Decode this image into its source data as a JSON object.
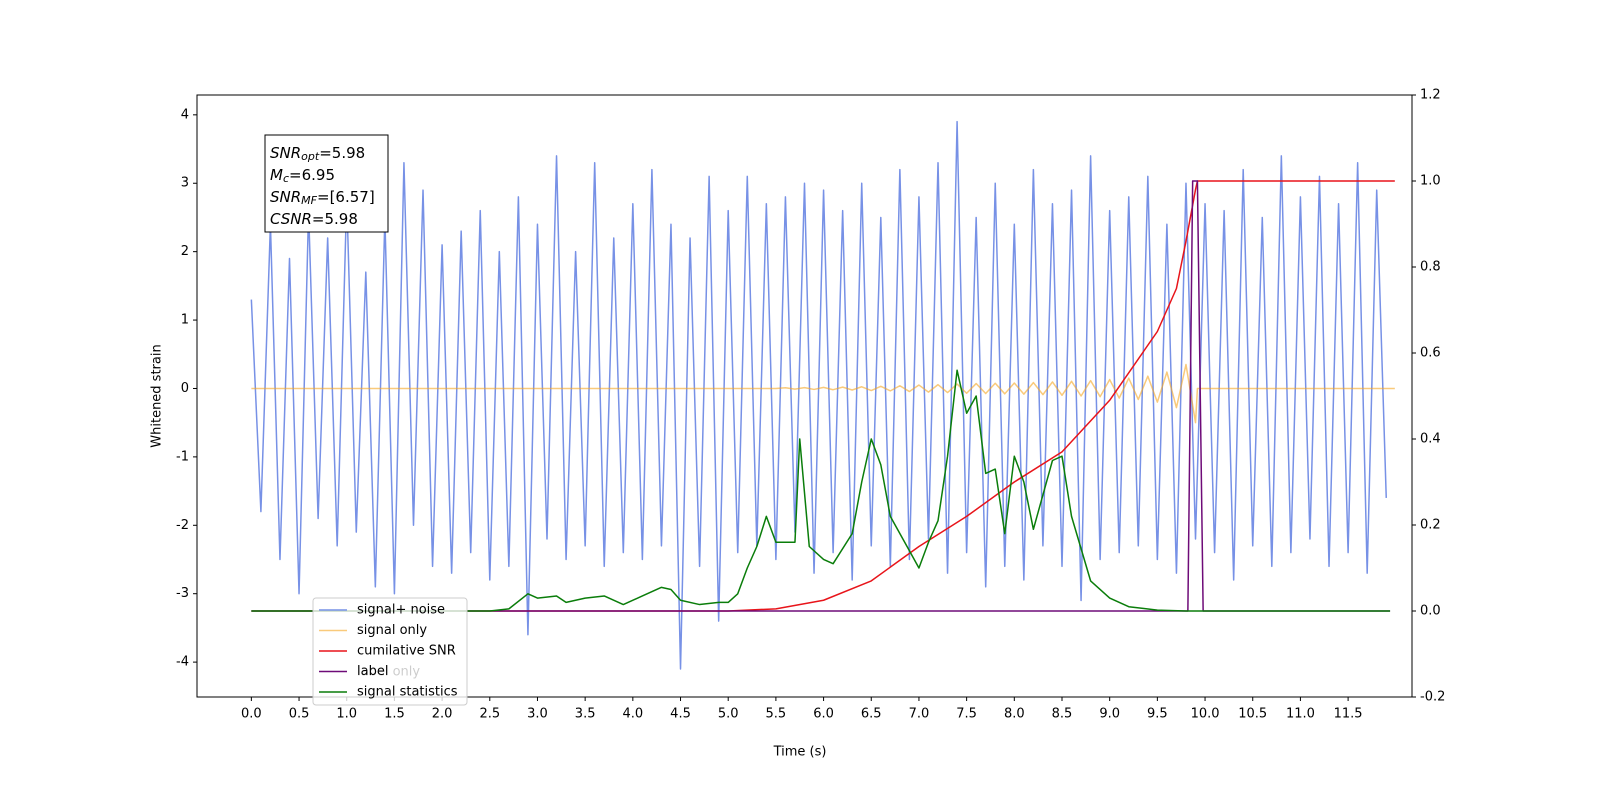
{
  "chart_data": {
    "type": "line",
    "xlabel": "Time (s)",
    "ylabel": "Whitened strain",
    "xlim": [
      -0.57,
      12.17
    ],
    "ylim": [
      -4.51,
      4.29
    ],
    "y2lim": [
      -0.2,
      1.2
    ],
    "xticks": [
      {
        "value": 0,
        "label": "0.0"
      },
      0.5,
      {
        "value": 1,
        "label": "1.0"
      },
      1.5,
      {
        "value": 2,
        "label": "2.0"
      },
      2.5,
      {
        "value": 3,
        "label": "3.0"
      },
      3.5,
      {
        "value": 4,
        "label": "4.0"
      },
      4.5,
      {
        "value": 5,
        "label": "5.0"
      },
      5.5,
      {
        "value": 6,
        "label": "6.0"
      },
      6.5,
      {
        "value": 7,
        "label": "7.0"
      },
      7.5,
      {
        "value": 8,
        "label": "8.0"
      },
      8.5,
      {
        "value": 9,
        "label": "9.0"
      },
      9.5,
      {
        "value": 10,
        "label": "10.0"
      },
      10.5,
      {
        "value": 11,
        "label": "11.0"
      },
      11.5
    ],
    "yticks": [
      -4,
      -3,
      -2,
      -1,
      0,
      1,
      2,
      3,
      4
    ],
    "y2ticks": [
      -0.2,
      {
        "value": 0,
        "label": "0.0"
      },
      0.2,
      0.4,
      0.6,
      0.8,
      {
        "value": 1,
        "label": "1.0"
      },
      1.2
    ],
    "annotation": [
      {
        "main": "SNR",
        "sub": "opt",
        "rest": "=5.98"
      },
      {
        "main": "M",
        "sub": "c",
        "rest": "=6.95"
      },
      {
        "main": "SNR",
        "sub": "MF",
        "rest": "=[6.57]"
      },
      {
        "main": "CSNR",
        "sub": null,
        "rest": "=5.98"
      }
    ],
    "legend_ghost": [
      "label only"
    ],
    "series": [
      {
        "name": "signal+ noise",
        "color": "#7791e6",
        "axis": "y",
        "x": [
          0,
          0.1,
          0.2,
          0.3,
          0.4,
          0.5,
          0.6,
          0.7,
          0.8,
          0.9,
          1,
          1.1,
          1.2,
          1.3,
          1.4,
          1.5,
          1.6,
          1.7,
          1.8,
          1.9,
          2,
          2.1,
          2.2,
          2.3,
          2.4,
          2.5,
          2.6,
          2.7,
          2.8,
          2.9,
          3,
          3.1,
          3.2,
          3.3,
          3.4,
          3.5,
          3.6,
          3.7,
          3.8,
          3.9,
          4,
          4.1,
          4.2,
          4.3,
          4.4,
          4.5,
          4.6,
          4.7,
          4.8,
          4.9,
          5,
          5.1,
          5.2,
          5.3,
          5.4,
          5.5,
          5.6,
          5.7,
          5.8,
          5.9,
          6,
          6.1,
          6.2,
          6.3,
          6.4,
          6.5,
          6.6,
          6.7,
          6.8,
          6.9,
          7,
          7.1,
          7.2,
          7.3,
          7.4,
          7.5,
          7.6,
          7.7,
          7.8,
          7.9,
          8,
          8.1,
          8.2,
          8.3,
          8.4,
          8.5,
          8.6,
          8.7,
          8.8,
          8.9,
          9,
          9.1,
          9.2,
          9.3,
          9.4,
          9.5,
          9.6,
          9.7,
          9.8,
          9.9,
          10,
          10.1,
          10.2,
          10.3,
          10.4,
          10.5,
          10.6,
          10.7,
          10.8,
          10.9,
          11,
          11.1,
          11.2,
          11.3,
          11.4,
          11.5,
          11.6,
          11.7,
          11.8,
          11.9
        ],
        "values": [
          1.3,
          -1.8,
          2.4,
          -2.5,
          1.9,
          -3.0,
          2.6,
          -1.9,
          2.2,
          -2.3,
          2.8,
          -2.1,
          1.7,
          -2.9,
          2.5,
          -3.0,
          3.3,
          -2.0,
          2.9,
          -2.6,
          2.1,
          -2.7,
          2.3,
          -2.4,
          2.6,
          -2.8,
          2.0,
          -2.6,
          2.8,
          -3.6,
          2.4,
          -2.2,
          3.4,
          -2.5,
          2.0,
          -2.3,
          3.3,
          -2.6,
          2.2,
          -2.4,
          2.7,
          -2.5,
          3.2,
          -2.3,
          2.4,
          -4.1,
          2.2,
          -2.6,
          3.1,
          -3.4,
          2.6,
          -2.4,
          3.1,
          -2.3,
          2.7,
          -2.5,
          2.8,
          -2.1,
          3.0,
          -2.7,
          2.9,
          -2.4,
          2.6,
          -2.8,
          3.0,
          -2.3,
          2.5,
          -2.6,
          3.2,
          -2.5,
          2.8,
          -2.2,
          3.3,
          -2.7,
          3.9,
          -2.4,
          2.5,
          -2.9,
          3.0,
          -2.6,
          2.4,
          -2.8,
          3.2,
          -2.3,
          2.7,
          -2.6,
          2.9,
          -3.1,
          3.4,
          -2.5,
          2.6,
          -2.4,
          2.8,
          -2.3,
          3.1,
          -2.5,
          2.4,
          -2.7,
          3.0,
          -2.2,
          2.7,
          -2.4,
          2.6,
          -2.8,
          3.2,
          -2.3,
          2.5,
          -2.6,
          3.4,
          -2.4,
          2.8,
          -2.2,
          3.1,
          -2.6,
          2.7,
          -2.4,
          3.3,
          -2.7,
          2.9,
          -1.6
        ]
      },
      {
        "name": "signal only",
        "color": "#f5a623",
        "axis": "y",
        "x": [
          0,
          5.5,
          5.6,
          5.7,
          5.8,
          5.9,
          6,
          6.1,
          6.2,
          6.3,
          6.4,
          6.5,
          6.6,
          6.7,
          6.8,
          6.9,
          7,
          7.1,
          7.2,
          7.3,
          7.4,
          7.5,
          7.6,
          7.7,
          7.8,
          7.9,
          8,
          8.1,
          8.2,
          8.3,
          8.4,
          8.5,
          8.6,
          8.7,
          8.8,
          8.9,
          9,
          9.1,
          9.2,
          9.3,
          9.4,
          9.5,
          9.6,
          9.7,
          9.8,
          9.9,
          9.92,
          11.99
        ],
        "values": [
          0,
          0,
          0.01,
          -0.01,
          0.012,
          -0.014,
          0.016,
          -0.018,
          0.02,
          -0.022,
          0.025,
          -0.03,
          0.032,
          -0.035,
          0.04,
          -0.045,
          0.05,
          -0.053,
          0.056,
          -0.06,
          0.065,
          -0.07,
          0.072,
          -0.074,
          0.076,
          -0.078,
          0.08,
          -0.083,
          0.086,
          -0.09,
          0.095,
          -0.1,
          0.105,
          -0.11,
          0.115,
          -0.12,
          0.13,
          -0.14,
          0.15,
          -0.16,
          0.18,
          -0.2,
          0.24,
          -0.28,
          0.35,
          -0.5,
          0,
          0
        ]
      },
      {
        "name": "cumilative SNR",
        "color": "#e8141a",
        "axis": "y2",
        "x": [
          0,
          5,
          5.5,
          6,
          6.5,
          7,
          7.5,
          8,
          8.5,
          9,
          9.5,
          9.7,
          9.8,
          9.9,
          9.92,
          11.99
        ],
        "values": [
          0,
          0,
          0.005,
          0.025,
          0.07,
          0.15,
          0.22,
          0.3,
          0.37,
          0.49,
          0.65,
          0.75,
          0.86,
          0.98,
          1,
          1
        ]
      },
      {
        "name": "label",
        "color": "#6e0b78",
        "axis": "y2",
        "x": [
          0,
          9.82,
          9.87,
          9.92,
          9.98,
          11.94
        ],
        "values": [
          0,
          0,
          1,
          1,
          0,
          0
        ]
      },
      {
        "name": "signal statistics",
        "color": "#0a7d0a",
        "axis": "y2",
        "x": [
          0,
          2.5,
          2.7,
          2.9,
          3,
          3.2,
          3.3,
          3.5,
          3.7,
          3.9,
          4.1,
          4.3,
          4.4,
          4.5,
          4.7,
          4.9,
          5,
          5.1,
          5.2,
          5.3,
          5.4,
          5.5,
          5.7,
          5.75,
          5.85,
          6,
          6.1,
          6.3,
          6.4,
          6.5,
          6.6,
          6.7,
          6.9,
          7,
          7.1,
          7.2,
          7.3,
          7.4,
          7.5,
          7.6,
          7.7,
          7.8,
          7.9,
          8,
          8.1,
          8.2,
          8.3,
          8.4,
          8.5,
          8.6,
          8.8,
          9,
          9.2,
          9.5,
          9.8,
          11.94
        ],
        "values": [
          0,
          0,
          0.005,
          0.04,
          0.03,
          0.035,
          0.02,
          0.03,
          0.035,
          0.015,
          0.035,
          0.055,
          0.05,
          0.025,
          0.015,
          0.02,
          0.02,
          0.04,
          0.1,
          0.15,
          0.22,
          0.16,
          0.16,
          0.4,
          0.15,
          0.12,
          0.11,
          0.18,
          0.3,
          0.4,
          0.34,
          0.22,
          0.14,
          0.1,
          0.16,
          0.21,
          0.36,
          0.56,
          0.46,
          0.5,
          0.32,
          0.33,
          0.18,
          0.36,
          0.3,
          0.19,
          0.27,
          0.35,
          0.36,
          0.22,
          0.07,
          0.03,
          0.01,
          0.002,
          0,
          0
        ]
      }
    ]
  }
}
